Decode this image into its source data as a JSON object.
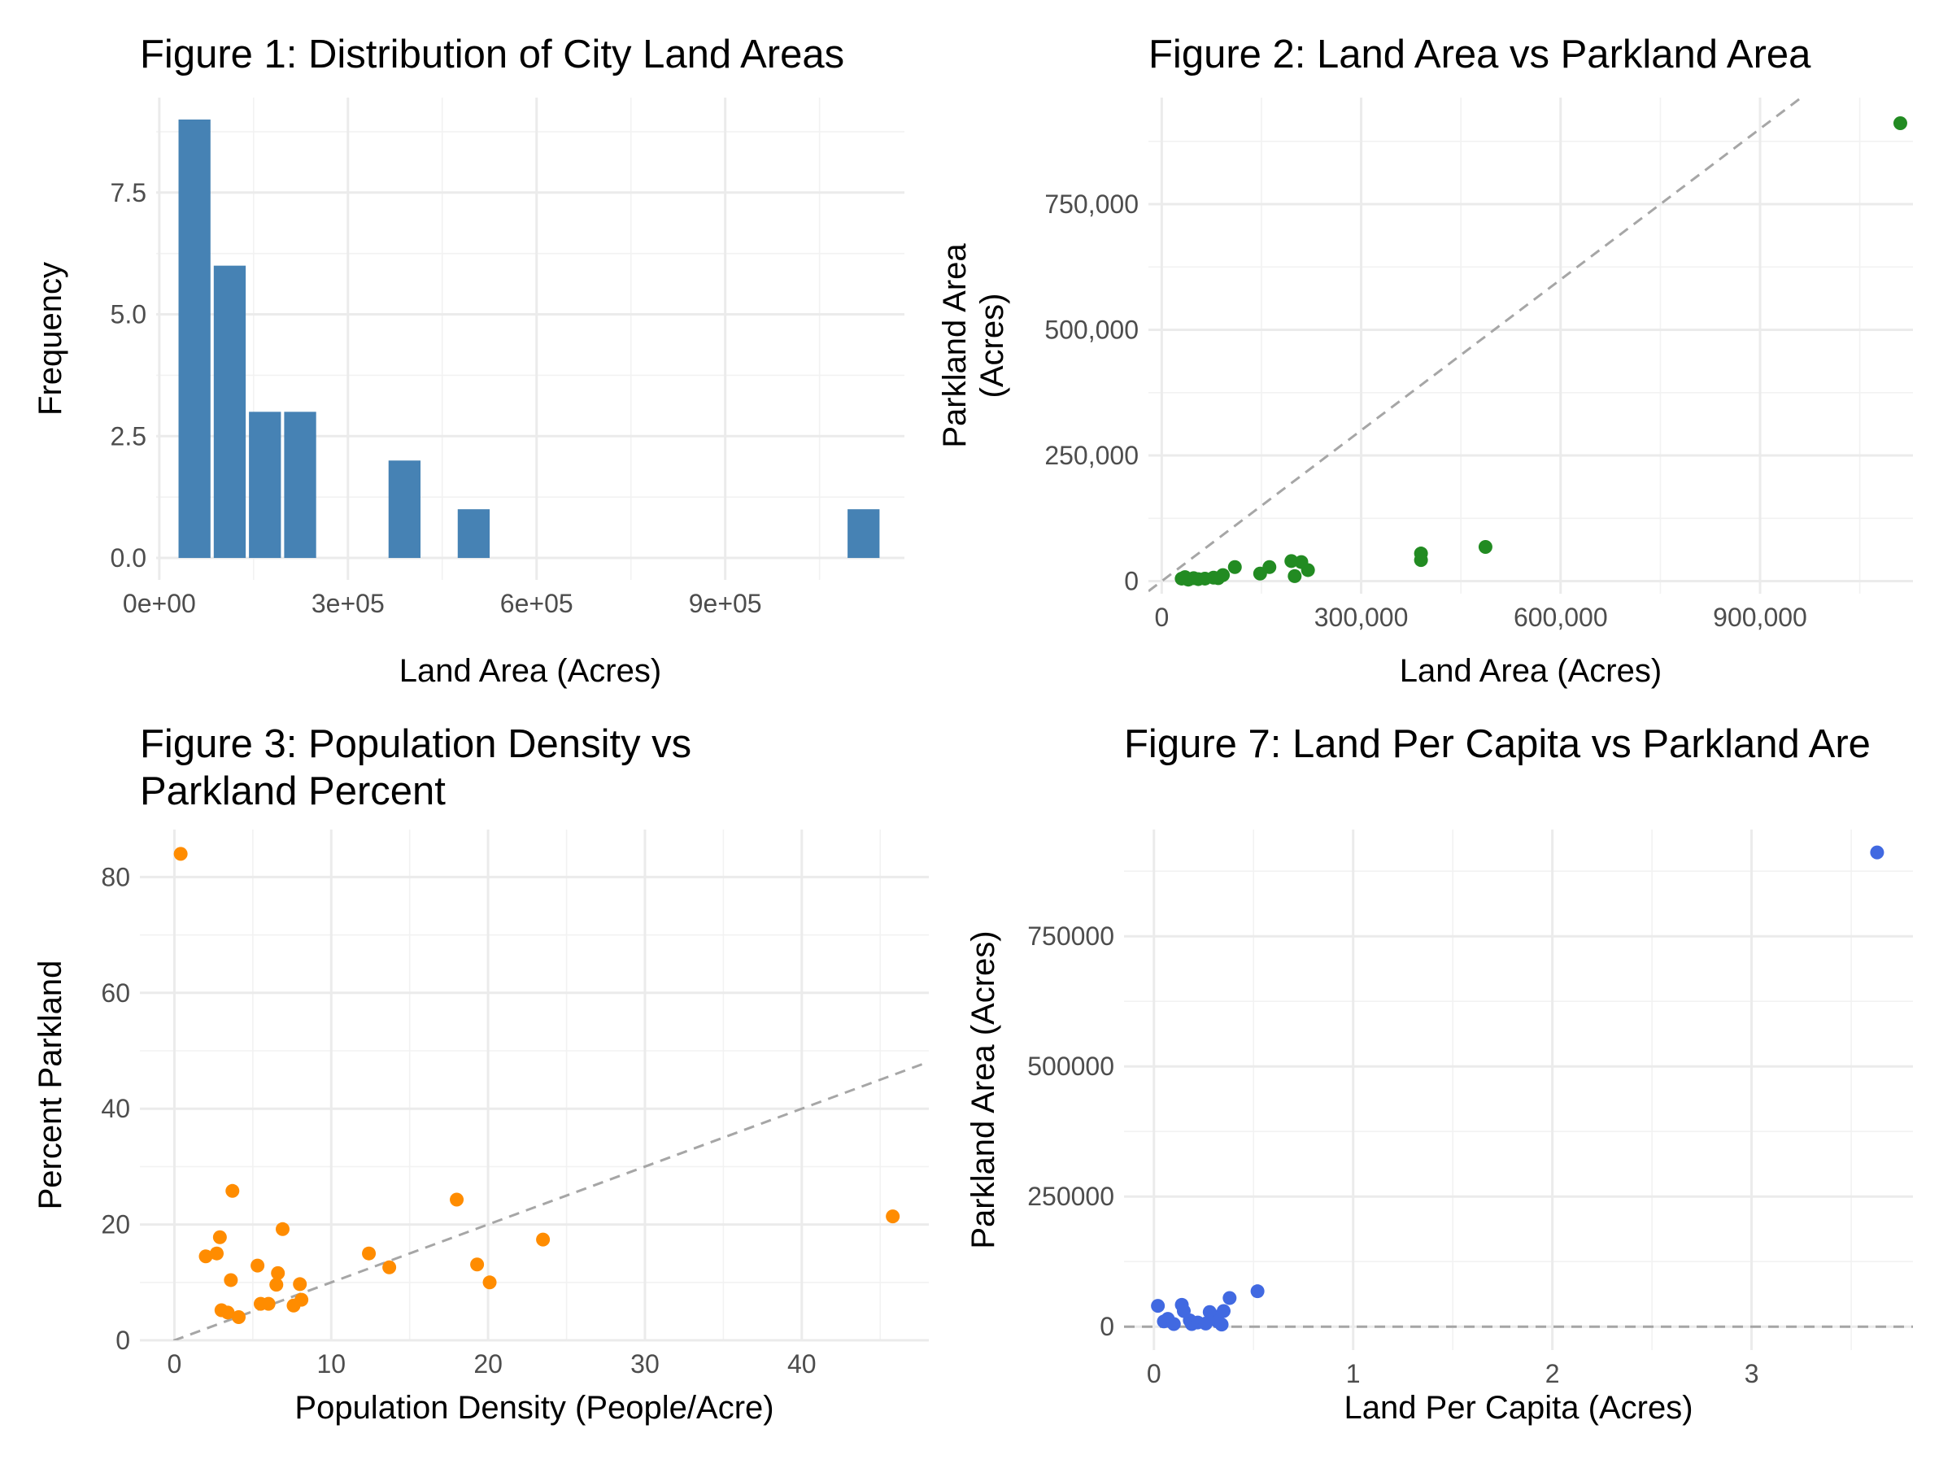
{
  "chart_data": [
    {
      "id": "fig1",
      "type": "bar",
      "title": [
        "Figure 1: Distribution of City Land Areas"
      ],
      "xlabel": "Land Area (Acres)",
      "ylabel": "Frequency",
      "xlim": [
        -5000,
        1185000
      ],
      "ylim": [
        -0.45,
        9.45
      ],
      "x_ticks": [
        0,
        300000,
        600000,
        900000
      ],
      "x_tick_labels": [
        "0e+00",
        "3e+05",
        "6e+05",
        "9e+05"
      ],
      "y_ticks": [
        0,
        2.5,
        5.0,
        7.5
      ],
      "y_tick_labels": [
        "0.0",
        "2.5",
        "5.0",
        "7.5"
      ],
      "bar_color": "#4682b4",
      "bin_width": 56000,
      "bins": [
        {
          "center": 56000,
          "count": 9
        },
        {
          "center": 112000,
          "count": 6
        },
        {
          "center": 168000,
          "count": 3
        },
        {
          "center": 224000,
          "count": 3
        },
        {
          "center": 390000,
          "count": 2
        },
        {
          "center": 500000,
          "count": 1
        },
        {
          "center": 1120000,
          "count": 1
        }
      ],
      "grid": true
    },
    {
      "id": "fig2",
      "type": "scatter",
      "title": [
        "Figure 2: Land Area vs Parkland Area"
      ],
      "xlabel": "Land Area (Acres)",
      "ylabel": [
        "Parkland Area",
        "(Acres)"
      ],
      "xlim": [
        -20000,
        1130000
      ],
      "ylim": [
        -25000,
        962000
      ],
      "x_ticks": [
        0,
        300000,
        600000,
        900000
      ],
      "x_tick_labels": [
        "0",
        "300,000",
        "600,000",
        "900,000"
      ],
      "y_ticks": [
        0,
        250000,
        500000,
        750000
      ],
      "y_tick_labels": [
        "0",
        "250,000",
        "500,000",
        "750,000"
      ],
      "point_color": "#228b22",
      "reference_line": {
        "slope": 1,
        "intercept": 0
      },
      "points": [
        {
          "x": 30000,
          "y": 5000
        },
        {
          "x": 35000,
          "y": 8000
        },
        {
          "x": 40000,
          "y": 3000
        },
        {
          "x": 48000,
          "y": 6000
        },
        {
          "x": 55000,
          "y": 4000
        },
        {
          "x": 65000,
          "y": 5000
        },
        {
          "x": 78000,
          "y": 7000
        },
        {
          "x": 85000,
          "y": 6000
        },
        {
          "x": 92000,
          "y": 12000
        },
        {
          "x": 110000,
          "y": 28000
        },
        {
          "x": 148000,
          "y": 15000
        },
        {
          "x": 162000,
          "y": 28000
        },
        {
          "x": 195000,
          "y": 40000
        },
        {
          "x": 200000,
          "y": 10000
        },
        {
          "x": 210000,
          "y": 38000
        },
        {
          "x": 220000,
          "y": 22000
        },
        {
          "x": 390000,
          "y": 55000
        },
        {
          "x": 390000,
          "y": 42000
        },
        {
          "x": 487000,
          "y": 68000
        },
        {
          "x": 1111000,
          "y": 911000
        }
      ],
      "grid": true
    },
    {
      "id": "fig3",
      "type": "scatter",
      "title": [
        "Figure 3: Population Density vs",
        "Parkland Percent"
      ],
      "xlabel": "Population Density (People/Acre)",
      "ylabel": "Percent Parkland",
      "xlim": [
        -2.2,
        48.1
      ],
      "ylim": [
        0,
        88.2
      ],
      "x_ticks": [
        0,
        10,
        20,
        30,
        40
      ],
      "x_tick_labels": [
        "0",
        "10",
        "20",
        "30",
        "40"
      ],
      "y_ticks": [
        0,
        20,
        40,
        60,
        80
      ],
      "y_tick_labels": [
        "0",
        "20",
        "40",
        "60",
        "80"
      ],
      "point_color": "#ff8c00",
      "reference_line": {
        "slope": 1,
        "intercept": 0
      },
      "points": [
        {
          "x": 0.4,
          "y": 84.0
        },
        {
          "x": 2.0,
          "y": 14.5
        },
        {
          "x": 2.7,
          "y": 15.0
        },
        {
          "x": 2.9,
          "y": 17.8
        },
        {
          "x": 3.0,
          "y": 5.2
        },
        {
          "x": 3.4,
          "y": 4.8
        },
        {
          "x": 3.6,
          "y": 10.4
        },
        {
          "x": 3.7,
          "y": 25.8
        },
        {
          "x": 4.1,
          "y": 4.0
        },
        {
          "x": 5.3,
          "y": 12.9
        },
        {
          "x": 5.5,
          "y": 6.3
        },
        {
          "x": 6.0,
          "y": 6.3
        },
        {
          "x": 6.5,
          "y": 9.6
        },
        {
          "x": 6.6,
          "y": 11.6
        },
        {
          "x": 6.9,
          "y": 19.2
        },
        {
          "x": 7.6,
          "y": 6.0
        },
        {
          "x": 8.0,
          "y": 9.7
        },
        {
          "x": 8.1,
          "y": 7.0
        },
        {
          "x": 12.4,
          "y": 15.0
        },
        {
          "x": 13.7,
          "y": 12.6
        },
        {
          "x": 18.0,
          "y": 24.3
        },
        {
          "x": 19.3,
          "y": 13.1
        },
        {
          "x": 20.1,
          "y": 10.0
        },
        {
          "x": 23.5,
          "y": 17.4
        },
        {
          "x": 45.8,
          "y": 21.4
        }
      ],
      "grid": true
    },
    {
      "id": "fig7",
      "type": "scatter",
      "title": [
        "Figure 7: Land Per Capita vs Parkland Are"
      ],
      "xlabel": "Land Per Capita (Acres)",
      "ylabel": "Parkland Area (Acres)",
      "xlim": [
        -0.15,
        3.81
      ],
      "ylim": [
        -45000,
        955000
      ],
      "x_ticks": [
        0,
        1,
        2,
        3
      ],
      "x_tick_labels": [
        "0",
        "1",
        "2",
        "3"
      ],
      "y_ticks": [
        0,
        250000,
        500000,
        750000
      ],
      "y_tick_labels": [
        "0",
        "250000",
        "500000",
        "750000"
      ],
      "point_color": "#4169e1",
      "reference_line": {
        "slope": 0,
        "intercept": 0
      },
      "points": [
        {
          "x": 0.02,
          "y": 40000
        },
        {
          "x": 0.05,
          "y": 10000
        },
        {
          "x": 0.07,
          "y": 15000
        },
        {
          "x": 0.1,
          "y": 5000
        },
        {
          "x": 0.14,
          "y": 42000
        },
        {
          "x": 0.15,
          "y": 30000
        },
        {
          "x": 0.18,
          "y": 12000
        },
        {
          "x": 0.19,
          "y": 5000
        },
        {
          "x": 0.22,
          "y": 8000
        },
        {
          "x": 0.26,
          "y": 6000
        },
        {
          "x": 0.28,
          "y": 28000
        },
        {
          "x": 0.3,
          "y": 20000
        },
        {
          "x": 0.32,
          "y": 10000
        },
        {
          "x": 0.34,
          "y": 4000
        },
        {
          "x": 0.35,
          "y": 30000
        },
        {
          "x": 0.38,
          "y": 55000
        },
        {
          "x": 0.52,
          "y": 68000
        },
        {
          "x": 3.63,
          "y": 911000
        }
      ],
      "grid": true
    }
  ]
}
